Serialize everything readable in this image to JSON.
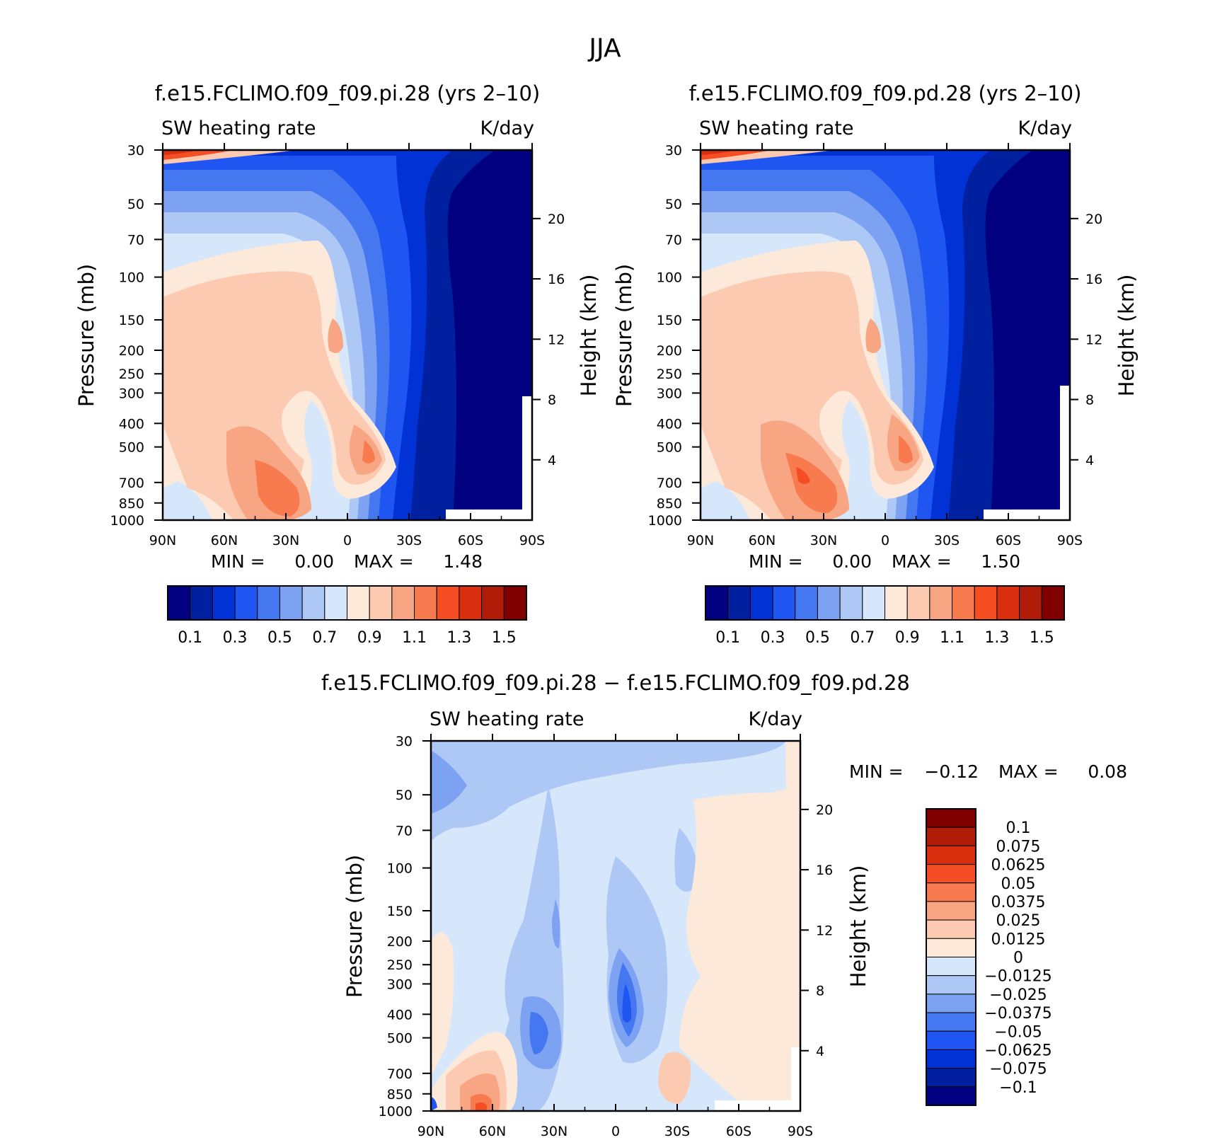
{
  "figure_title": "JJA",
  "colors": {
    "seq": [
      "#000080",
      "#0020a0",
      "#0032d6",
      "#1f55f0",
      "#4578f0",
      "#7ea2f2",
      "#aec8f6",
      "#d6e7fb",
      "#fde9d9",
      "#fccab1",
      "#f8a584",
      "#f77b4e",
      "#f54d24",
      "#d92f0e",
      "#b11c08",
      "#800000"
    ],
    "diff": [
      "#000080",
      "#0020a0",
      "#0032d6",
      "#1f55f0",
      "#4578f0",
      "#7ea2f2",
      "#aec8f6",
      "#d6e7fb",
      "#fde9d9",
      "#fccab1",
      "#f8a584",
      "#f77b4e",
      "#f54d24",
      "#d92f0e",
      "#b11c08",
      "#800000"
    ]
  },
  "chart_data": [
    {
      "type": "heatmap",
      "title": "f.e15.FCLIMO.f09_f09.pi.28 (yrs 2–10)",
      "left_label": "SW heating rate",
      "right_label": "K/day",
      "ylabel": "Pressure (mb)",
      "y2label": "Height (km)",
      "x_ticks": [
        "90N",
        "60N",
        "30N",
        "0",
        "30S",
        "60S",
        "90S"
      ],
      "y_ticks": [
        "30",
        "50",
        "70",
        "100",
        "150",
        "200",
        "250",
        "300",
        "400",
        "500",
        "700",
        "850",
        "1000"
      ],
      "y2_ticks": [
        "20",
        "16",
        "12",
        "8",
        "4"
      ],
      "stats": {
        "min_label": "MIN =",
        "min": "0.00",
        "max_label": "MAX =",
        "max": "1.48"
      },
      "colorbar_labels": [
        "0.1",
        "0.3",
        "0.5",
        "0.7",
        "0.9",
        "1.1",
        "1.3",
        "1.5"
      ]
    },
    {
      "type": "heatmap",
      "title": "f.e15.FCLIMO.f09_f09.pd.28 (yrs 2–10)",
      "left_label": "SW heating rate",
      "right_label": "K/day",
      "ylabel": "Pressure (mb)",
      "y2label": "Height (km)",
      "x_ticks": [
        "90N",
        "60N",
        "30N",
        "0",
        "30S",
        "60S",
        "90S"
      ],
      "y_ticks": [
        "30",
        "50",
        "70",
        "100",
        "150",
        "200",
        "250",
        "300",
        "400",
        "500",
        "700",
        "850",
        "1000"
      ],
      "y2_ticks": [
        "20",
        "16",
        "12",
        "8",
        "4"
      ],
      "stats": {
        "min_label": "MIN =",
        "min": "0.00",
        "max_label": "MAX =",
        "max": "1.50"
      },
      "colorbar_labels": [
        "0.1",
        "0.3",
        "0.5",
        "0.7",
        "0.9",
        "1.1",
        "1.3",
        "1.5"
      ]
    },
    {
      "type": "heatmap",
      "title": "f.e15.FCLIMO.f09_f09.pi.28 − f.e15.FCLIMO.f09_f09.pd.28",
      "left_label": "SW heating rate",
      "right_label": "K/day",
      "ylabel": "Pressure (mb)",
      "y2label": "Height (km)",
      "x_ticks": [
        "90N",
        "60N",
        "30N",
        "0",
        "30S",
        "60S",
        "90S"
      ],
      "y_ticks": [
        "30",
        "50",
        "70",
        "100",
        "150",
        "200",
        "250",
        "300",
        "400",
        "500",
        "700",
        "850",
        "1000"
      ],
      "y2_ticks": [
        "20",
        "16",
        "12",
        "8",
        "4"
      ],
      "stats": {
        "min_label": "MIN =",
        "min": "−0.12",
        "max_label": "MAX =",
        "max": "0.08"
      },
      "colorbar_labels": [
        "0.1",
        "0.075",
        "0.0625",
        "0.05",
        "0.0375",
        "0.025",
        "0.0125",
        "0",
        "−0.0125",
        "−0.025",
        "−0.0375",
        "−0.05",
        "−0.0625",
        "−0.075",
        "−0.1"
      ]
    }
  ]
}
